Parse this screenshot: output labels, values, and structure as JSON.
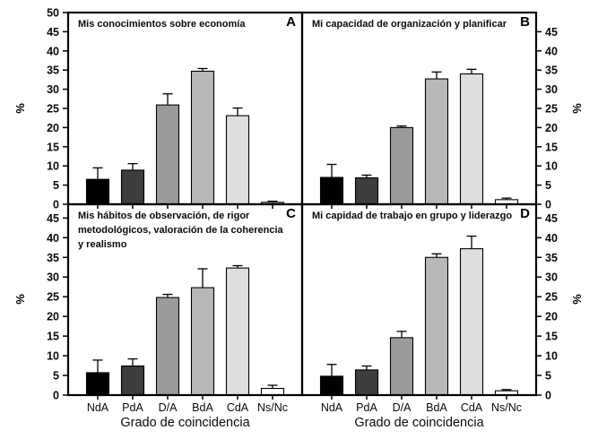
{
  "figure": {
    "ylabel": "%",
    "xlabel": "Grado de coincidencia",
    "categories": [
      "NdA",
      "PdA",
      "D/A",
      "BdA",
      "CdA",
      "Ns/Nc"
    ],
    "bar_colors": [
      "#000000",
      "#3d3d3d",
      "#9a9a9a",
      "#b8b8b8",
      "#dedede",
      "#ffffff"
    ],
    "axis_color": "#000000"
  },
  "chart_data": [
    {
      "type": "bar",
      "panel_label": "A",
      "title": "Mis conocimientos sobre economía",
      "yaxis_side": "left",
      "ylim": [
        0,
        50
      ],
      "yticks": [
        0,
        5,
        10,
        15,
        20,
        25,
        30,
        35,
        40,
        45,
        50
      ],
      "categories": [
        "NdA",
        "PdA",
        "D/A",
        "BdA",
        "CdA",
        "Ns/Nc"
      ],
      "values": [
        6.5,
        8.9,
        25.9,
        34.7,
        23.1,
        0.5
      ],
      "errors": [
        3.0,
        1.7,
        2.9,
        0.7,
        2.0,
        0.3
      ],
      "show_x_labels": false
    },
    {
      "type": "bar",
      "panel_label": "B",
      "title": "Mi capacidad de organización y planificar",
      "yaxis_side": "right",
      "ylim": [
        0,
        50
      ],
      "yticks": [
        0,
        5,
        10,
        15,
        20,
        25,
        30,
        35,
        40,
        45
      ],
      "categories": [
        "NdA",
        "PdA",
        "D/A",
        "BdA",
        "CdA",
        "Ns/Nc"
      ],
      "values": [
        7.0,
        6.9,
        20.0,
        32.7,
        34.0,
        1.2
      ],
      "errors": [
        3.4,
        0.7,
        0.4,
        1.8,
        1.2,
        0.4
      ],
      "show_x_labels": false
    },
    {
      "type": "bar",
      "panel_label": "C",
      "title": "Mis hábitos de observación, de rigor metodológicos, valoración de la coherencia y realismo",
      "yaxis_side": "left",
      "ylim": [
        0,
        48.5
      ],
      "yticks": [
        0,
        5,
        10,
        15,
        20,
        25,
        30,
        35,
        40,
        45
      ],
      "categories": [
        "NdA",
        "PdA",
        "D/A",
        "BdA",
        "CdA",
        "Ns/Nc"
      ],
      "values": [
        5.7,
        7.4,
        24.8,
        27.3,
        32.3,
        1.7
      ],
      "errors": [
        3.2,
        1.8,
        0.8,
        4.8,
        0.6,
        0.8
      ],
      "show_x_labels": true
    },
    {
      "type": "bar",
      "panel_label": "D",
      "title": "Mi capidad de trabajo en grupo y liderazgo",
      "yaxis_side": "right",
      "ylim": [
        0,
        48.5
      ],
      "yticks": [
        0,
        5,
        10,
        15,
        20,
        25,
        30,
        35,
        40,
        45
      ],
      "categories": [
        "NdA",
        "PdA",
        "D/A",
        "BdA",
        "CdA",
        "Ns/Nc"
      ],
      "values": [
        4.8,
        6.4,
        14.6,
        35.0,
        37.2,
        1.1
      ],
      "errors": [
        3.0,
        1.0,
        1.6,
        0.9,
        3.2,
        0.3
      ],
      "show_x_labels": true
    }
  ]
}
